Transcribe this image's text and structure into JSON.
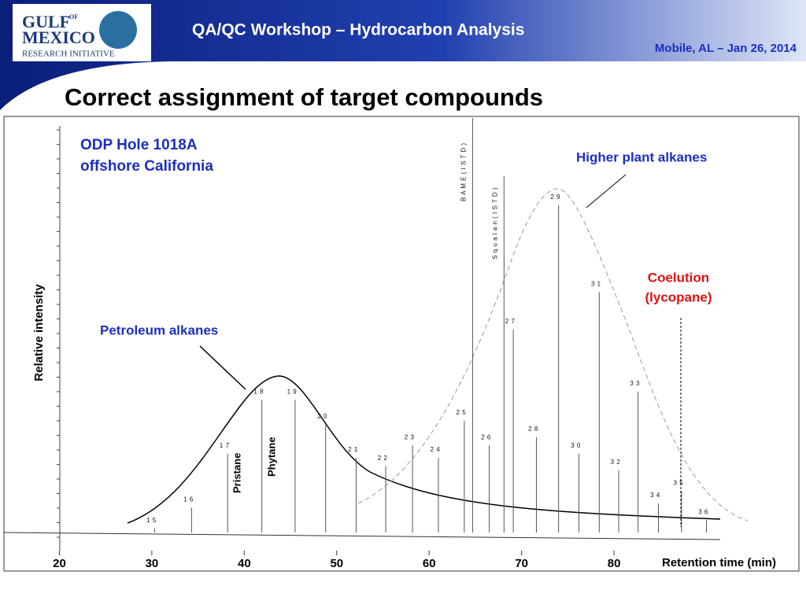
{
  "header": {
    "logo_line1": "GULF",
    "logo_of": "OF",
    "logo_line2": "MEXICO",
    "logo_line3": "RESEARCH INITIATIVE",
    "workshop": "QA/QC Workshop – Hydrocarbon  Analysis",
    "event": "Mobile, AL – Jan 26, 2014"
  },
  "slide_title": "Correct assignment of target compounds",
  "chart_data": {
    "type": "chromatogram",
    "xlabel": "Retention time (min)",
    "ylabel": "Relative intensity",
    "xlim": [
      14,
      100
    ],
    "xticks": [
      20,
      30,
      40,
      50,
      60,
      70,
      80
    ],
    "annotations": {
      "sample_line1": "ODP Hole 1018A",
      "sample_line2": "offshore California",
      "petroleum": "Petroleum alkanes",
      "plant": "Higher plant alkanes",
      "coelution_line1": "Coelution",
      "coelution_line2": "(lycopane)",
      "pristane": "Pristane",
      "phytane": "Phytane"
    },
    "peaks": {
      "labels": [
        "1 5",
        "1 6",
        "1 7",
        "1 8",
        "1 9",
        "2 0",
        "2 1",
        "2 2",
        "2 3",
        "2 4",
        "2 5",
        "B A M E  ( I S T D )",
        "2 6",
        "S q u a l a n  ( I S T D )",
        "2 7",
        "2 8",
        "2 9",
        "3 0",
        "3 1",
        "3 2",
        "3 3",
        "3 4",
        "3 5",
        "3 6"
      ],
      "x": [
        30.3,
        34.3,
        38.2,
        41.9,
        45.5,
        48.8,
        52.1,
        55.3,
        58.2,
        61.0,
        63.8,
        64.7,
        66.5,
        68.1,
        69.1,
        71.6,
        74.0,
        76.2,
        78.4,
        80.5,
        82.6,
        84.8,
        87.3,
        90.0
      ],
      "values": [
        1,
        6,
        19,
        32,
        32,
        26,
        18,
        16,
        21,
        18,
        27,
        100,
        21,
        86,
        49,
        23,
        79,
        19,
        58,
        15,
        34,
        7,
        10,
        3
      ]
    }
  }
}
